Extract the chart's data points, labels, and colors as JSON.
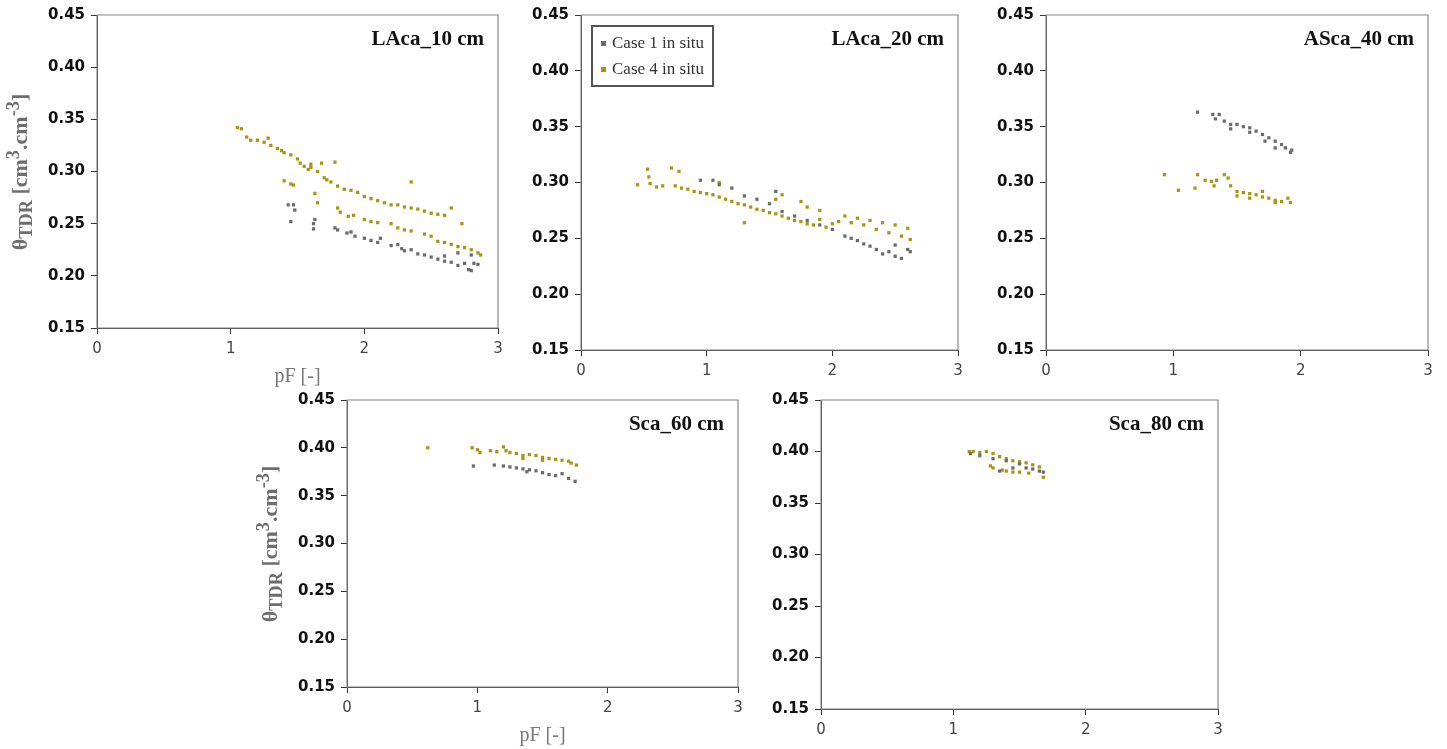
{
  "chart_data": [
    {
      "type": "scatter",
      "title": "LAca_10 cm",
      "xlabel": "pF [-]",
      "ylabel": "θ$_{TDR}$ [cm$^{3}$.cm$^{-3}$]",
      "xlim": [
        0,
        3
      ],
      "xticks": [
        0,
        1,
        2,
        3
      ],
      "ylim": [
        0.15,
        0.45
      ],
      "yticks": [
        0.15,
        {
          "value": 0.2,
          "label": "0.20"
        },
        0.25,
        {
          "value": 0.3,
          "label": "0.30"
        },
        0.35,
        {
          "value": 0.4,
          "label": "0.40"
        },
        0.45
      ],
      "grid": false,
      "marker": "square",
      "series": [
        {
          "color": "#6b6b6b",
          "x": [
            1.43,
            1.47,
            1.45,
            1.48,
            1.62,
            1.63,
            1.62,
            1.78,
            1.8,
            1.87,
            1.9,
            1.93,
            2.0,
            2.05,
            2.1,
            2.12,
            2.2,
            2.25,
            2.28,
            2.3,
            2.35,
            2.4,
            2.45,
            2.5,
            2.55,
            2.6,
            2.65,
            2.7,
            2.75,
            2.78,
            2.8,
            2.82,
            2.85,
            2.6,
            2.7,
            2.8
          ],
          "values": [
            0.268,
            0.268,
            0.252,
            0.263,
            0.25,
            0.254,
            0.245,
            0.246,
            0.244,
            0.241,
            0.242,
            0.238,
            0.236,
            0.234,
            0.232,
            0.236,
            0.229,
            0.23,
            0.226,
            0.224,
            0.225,
            0.221,
            0.22,
            0.218,
            0.216,
            0.214,
            0.213,
            0.21,
            0.212,
            0.206,
            0.205,
            0.212,
            0.211,
            0.219,
            0.222,
            0.22
          ]
        },
        {
          "color": "#a8940f",
          "x": [
            1.05,
            1.08,
            1.12,
            1.15,
            1.2,
            1.25,
            1.28,
            1.3,
            1.35,
            1.38,
            1.4,
            1.45,
            1.5,
            1.52,
            1.55,
            1.58,
            1.6,
            1.65,
            1.7,
            1.72,
            1.75,
            1.8,
            1.85,
            1.9,
            1.95,
            2.0,
            2.05,
            2.1,
            2.15,
            2.2,
            2.25,
            2.3,
            2.35,
            2.4,
            2.45,
            2.5,
            2.55,
            2.6,
            2.65,
            2.73,
            1.4,
            1.45,
            1.47,
            1.6,
            1.68,
            1.78,
            2.35,
            1.63,
            1.65,
            1.8,
            1.82,
            1.88,
            1.92,
            2.0,
            2.05,
            2.1,
            2.2,
            2.25,
            2.3,
            2.35,
            2.45,
            2.5,
            2.55,
            2.6,
            2.65,
            2.7,
            2.75,
            2.8,
            2.85,
            2.87
          ],
          "values": [
            0.342,
            0.341,
            0.333,
            0.33,
            0.33,
            0.328,
            0.332,
            0.325,
            0.322,
            0.32,
            0.318,
            0.316,
            0.312,
            0.308,
            0.305,
            0.302,
            0.304,
            0.3,
            0.294,
            0.292,
            0.29,
            0.286,
            0.283,
            0.282,
            0.28,
            0.276,
            0.274,
            0.272,
            0.27,
            0.268,
            0.268,
            0.266,
            0.265,
            0.264,
            0.262,
            0.26,
            0.259,
            0.258,
            0.265,
            0.25,
            0.291,
            0.288,
            0.287,
            0.307,
            0.308,
            0.309,
            0.29,
            0.279,
            0.27,
            0.265,
            0.261,
            0.257,
            0.258,
            0.254,
            0.252,
            0.251,
            0.25,
            0.246,
            0.244,
            0.243,
            0.24,
            0.238,
            0.233,
            0.232,
            0.23,
            0.228,
            0.227,
            0.225,
            0.222,
            0.22
          ]
        }
      ]
    },
    {
      "type": "scatter",
      "title": "LAca_20 cm",
      "xlim": [
        0,
        3
      ],
      "xticks": [
        0,
        1,
        2,
        3
      ],
      "ylim": [
        0.15,
        0.45
      ],
      "yticks": [
        0.15,
        {
          "value": 0.2,
          "label": "0.20"
        },
        0.25,
        {
          "value": 0.3,
          "label": "0.30"
        },
        0.35,
        {
          "value": 0.4,
          "label": "0.40"
        },
        0.45
      ],
      "grid": false,
      "marker": "square",
      "legend": "top left",
      "series": [
        {
          "name": "Case 1 in situ",
          "color": "#6b6b6b",
          "x": [
            0.95,
            1.05,
            1.1,
            1.2,
            1.3,
            1.4,
            1.5,
            1.55,
            1.6,
            1.7,
            1.8,
            1.9,
            2.0,
            2.1,
            2.15,
            2.2,
            2.25,
            2.3,
            2.35,
            2.4,
            2.45,
            2.5,
            2.5,
            2.55,
            2.6,
            2.62
          ],
          "values": [
            0.302,
            0.302,
            0.298,
            0.295,
            0.288,
            0.285,
            0.281,
            0.292,
            0.274,
            0.27,
            0.266,
            0.262,
            0.258,
            0.252,
            0.25,
            0.248,
            0.245,
            0.243,
            0.24,
            0.236,
            0.238,
            0.234,
            0.244,
            0.232,
            0.24,
            0.238
          ]
        },
        {
          "name": "Case 4 in situ",
          "color": "#a8940f",
          "x": [
            0.45,
            0.53,
            0.54,
            0.55,
            0.6,
            0.65,
            0.72,
            0.75,
            0.78,
            0.8,
            0.85,
            0.9,
            0.95,
            1.0,
            1.05,
            1.1,
            1.1,
            1.15,
            1.2,
            1.25,
            1.3,
            1.3,
            1.35,
            1.4,
            1.45,
            1.5,
            1.55,
            1.55,
            1.6,
            1.65,
            1.7,
            1.75,
            1.8,
            1.85,
            1.9,
            1.95,
            2.0,
            2.05,
            2.1,
            2.15,
            2.2,
            2.25,
            2.3,
            2.35,
            2.4,
            2.45,
            2.5,
            2.55,
            2.6,
            2.62,
            1.9,
            1.75,
            1.6,
            1.8
          ],
          "values": [
            0.298,
            0.312,
            0.305,
            0.299,
            0.296,
            0.297,
            0.313,
            0.297,
            0.31,
            0.295,
            0.294,
            0.292,
            0.291,
            0.29,
            0.289,
            0.3,
            0.287,
            0.285,
            0.283,
            0.281,
            0.28,
            0.264,
            0.278,
            0.276,
            0.275,
            0.273,
            0.272,
            0.285,
            0.27,
            0.268,
            0.266,
            0.265,
            0.263,
            0.262,
            0.267,
            0.26,
            0.263,
            0.265,
            0.27,
            0.264,
            0.268,
            0.262,
            0.266,
            0.258,
            0.264,
            0.255,
            0.262,
            0.252,
            0.259,
            0.249,
            0.275,
            0.283,
            0.289,
            0.278
          ]
        }
      ]
    },
    {
      "type": "scatter",
      "title": "ASca_40 cm",
      "xlim": [
        0,
        3
      ],
      "xticks": [
        0,
        1,
        2,
        3
      ],
      "ylim": [
        0.15,
        0.45
      ],
      "yticks": [
        0.15,
        {
          "value": 0.2,
          "label": "0.20"
        },
        0.25,
        {
          "value": 0.3,
          "label": "0.30"
        },
        0.35,
        {
          "value": 0.4,
          "label": "0.40"
        },
        0.45
      ],
      "grid": false,
      "marker": "square",
      "series": [
        {
          "color": "#6b6b6b",
          "x": [
            1.19,
            1.31,
            1.36,
            1.33,
            1.4,
            1.45,
            1.5,
            1.55,
            1.6,
            1.65,
            1.7,
            1.75,
            1.8,
            1.85,
            1.88,
            1.92,
            1.93,
            1.45,
            1.6,
            1.72,
            1.8
          ],
          "values": [
            0.363,
            0.361,
            0.361,
            0.357,
            0.355,
            0.352,
            0.352,
            0.35,
            0.349,
            0.346,
            0.343,
            0.34,
            0.337,
            0.334,
            0.331,
            0.327,
            0.329,
            0.348,
            0.345,
            0.337,
            0.331
          ]
        },
        {
          "color": "#a8940f",
          "x": [
            0.93,
            1.04,
            1.17,
            1.19,
            1.25,
            1.3,
            1.32,
            1.34,
            1.4,
            1.43,
            1.45,
            1.5,
            1.55,
            1.6,
            1.65,
            1.7,
            1.75,
            1.8,
            1.85,
            1.9,
            1.92,
            1.5,
            1.6,
            1.7,
            1.8
          ],
          "values": [
            0.307,
            0.293,
            0.295,
            0.307,
            0.302,
            0.301,
            0.297,
            0.302,
            0.307,
            0.304,
            0.297,
            0.292,
            0.291,
            0.29,
            0.289,
            0.287,
            0.286,
            0.284,
            0.283,
            0.286,
            0.282,
            0.288,
            0.286,
            0.292,
            0.282
          ]
        }
      ]
    },
    {
      "type": "scatter",
      "title": "Sca_60 cm",
      "xlabel": "pF [-]",
      "ylabel": "θ$_{TDR}$ [cm$^{3}$.cm$^{-3}$]",
      "xlim": [
        0,
        3
      ],
      "xticks": [
        0,
        1,
        2,
        3
      ],
      "ylim": [
        0.15,
        0.45
      ],
      "yticks": [
        0.15,
        {
          "value": 0.2,
          "label": "0.20"
        },
        0.25,
        {
          "value": 0.3,
          "label": "0.30"
        },
        0.35,
        {
          "value": 0.4,
          "label": "0.40"
        },
        0.45
      ],
      "grid": false,
      "marker": "square",
      "series": [
        {
          "color": "#6b6b6b",
          "x": [
            0.97,
            1.13,
            1.2,
            1.25,
            1.3,
            1.35,
            1.4,
            1.45,
            1.5,
            1.55,
            1.6,
            1.65,
            1.7,
            1.75,
            1.38
          ],
          "values": [
            0.381,
            0.382,
            0.381,
            0.38,
            0.379,
            0.378,
            0.377,
            0.376,
            0.374,
            0.372,
            0.371,
            0.373,
            0.368,
            0.365,
            0.375
          ]
        },
        {
          "color": "#a8940f",
          "x": [
            0.62,
            0.96,
            1.0,
            1.02,
            1.1,
            1.15,
            1.2,
            1.22,
            1.25,
            1.3,
            1.35,
            1.4,
            1.45,
            1.5,
            1.55,
            1.6,
            1.65,
            1.7,
            1.72,
            1.76,
            1.35,
            1.5
          ],
          "values": [
            0.4,
            0.4,
            0.398,
            0.395,
            0.397,
            0.396,
            0.401,
            0.397,
            0.395,
            0.394,
            0.392,
            0.393,
            0.392,
            0.39,
            0.389,
            0.388,
            0.387,
            0.386,
            0.384,
            0.382,
            0.389,
            0.387
          ]
        }
      ]
    },
    {
      "type": "scatter",
      "title": "Sca_80 cm",
      "xlim": [
        0,
        3
      ],
      "xticks": [
        0,
        1,
        2,
        3
      ],
      "ylim": [
        0.15,
        0.45
      ],
      "yticks": [
        0.15,
        {
          "value": 0.2,
          "label": "0.20"
        },
        0.25,
        {
          "value": 0.3,
          "label": "0.30"
        },
        0.35,
        {
          "value": 0.4,
          "label": "0.40"
        },
        0.45
      ],
      "grid": false,
      "marker": "square",
      "series": [
        {
          "color": "#6b6b6b",
          "x": [
            1.13,
            1.2,
            1.3,
            1.4,
            1.5,
            1.55,
            1.6,
            1.65,
            1.68,
            1.35,
            1.45
          ],
          "values": [
            0.398,
            0.396,
            0.393,
            0.391,
            0.388,
            0.384,
            0.383,
            0.381,
            0.38,
            0.381,
            0.384
          ]
        },
        {
          "color": "#a8940f",
          "x": [
            1.12,
            1.15,
            1.2,
            1.25,
            1.3,
            1.35,
            1.4,
            1.45,
            1.5,
            1.55,
            1.6,
            1.65,
            1.68,
            1.28,
            1.3,
            1.37,
            1.4,
            1.45,
            1.5,
            1.57
          ],
          "values": [
            0.4,
            0.4,
            0.399,
            0.4,
            0.398,
            0.395,
            0.393,
            0.391,
            0.39,
            0.389,
            0.387,
            0.385,
            0.375,
            0.386,
            0.384,
            0.382,
            0.381,
            0.38,
            0.38,
            0.379
          ]
        }
      ]
    }
  ]
}
